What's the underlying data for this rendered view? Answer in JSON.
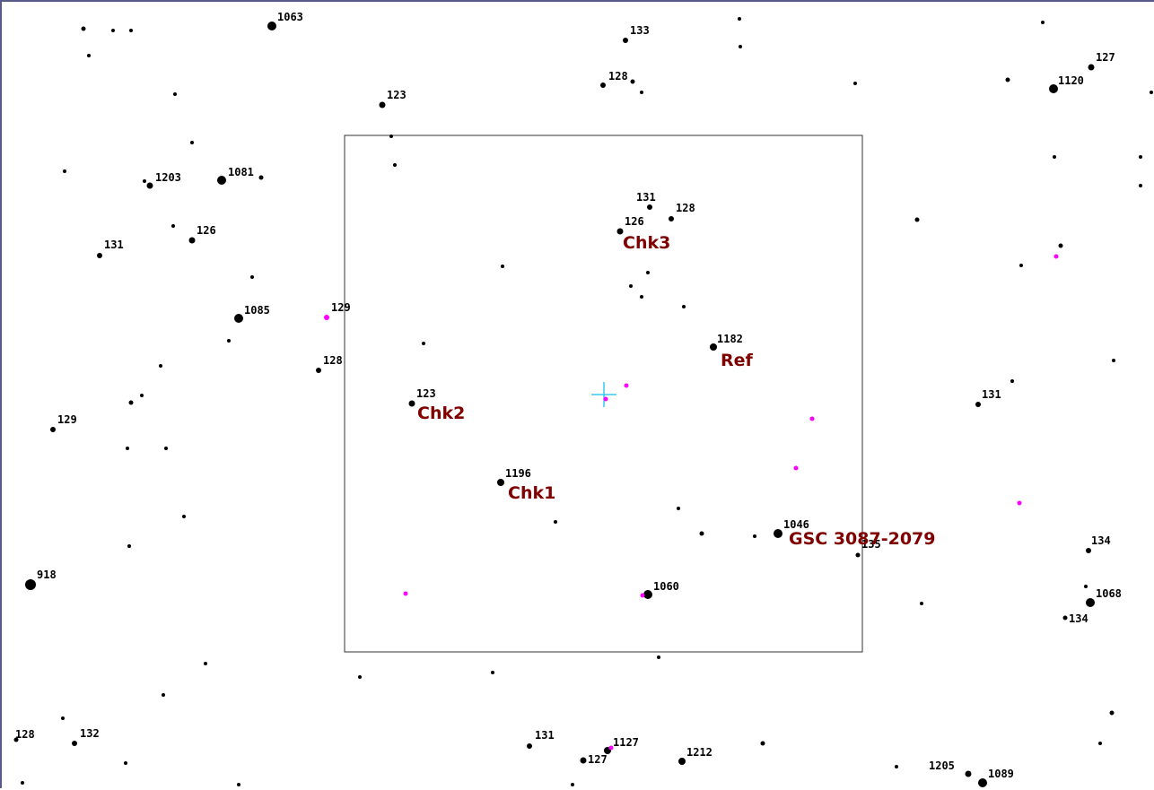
{
  "fov_box": {
    "shown": true
  },
  "target": {
    "icon": "crosshair-icon",
    "color": "#33ccee"
  },
  "colors": {
    "star": "#000000",
    "flagged_star": "#ff00ff",
    "identifier_label": "#800000",
    "frame": "#5a5a8a"
  },
  "labels": {
    "gsc": "GSC 3087-2079",
    "ref": "Ref",
    "chk1": "Chk1",
    "chk2": "Chk2",
    "chk3": "Chk3"
  },
  "magnitudes": {
    "m1063": "1063",
    "m133": "133",
    "m127a": "127",
    "m128a": "128",
    "m1120": "1120",
    "m123a": "123",
    "m1203": "1203",
    "m1081": "1081",
    "m131a": "131",
    "m128b": "128",
    "m126a": "126",
    "m126b": "126",
    "m131b": "131",
    "m1085": "1085",
    "m129a": "129",
    "m1182": "1182",
    "m128c": "128",
    "m123b": "123",
    "m131c": "131",
    "m129b": "129",
    "m1196": "1196",
    "m1046": "1046",
    "m135": "135",
    "m134a": "134",
    "m918": "918",
    "m1060": "1060",
    "m1068": "1068",
    "m134b": "134",
    "m128d": "128",
    "m132": "132",
    "m131d": "131",
    "m1127": "1127",
    "m127b": "127",
    "m1212": "1212",
    "m1205": "1205",
    "m1089": "1089"
  }
}
